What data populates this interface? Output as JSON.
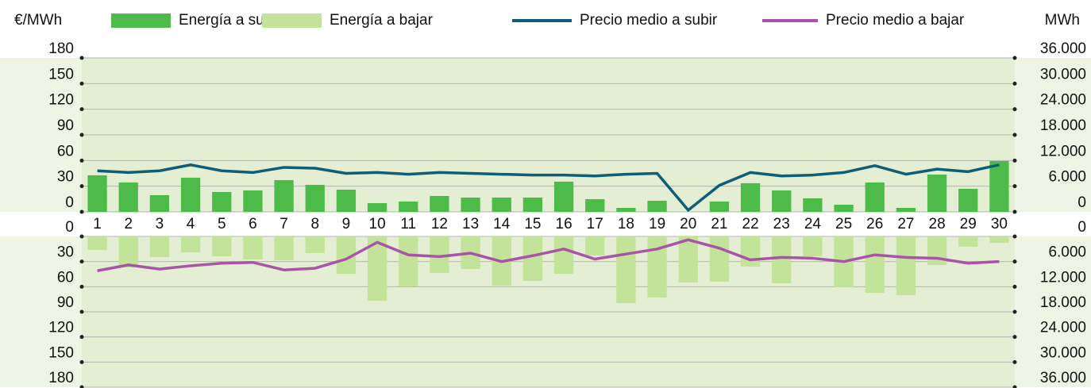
{
  "chart_data": [
    {
      "type": "bar",
      "y_label": "€/MWh",
      "y2_label": "MWh",
      "categories": [
        "1",
        "2",
        "3",
        "4",
        "5",
        "6",
        "7",
        "8",
        "9",
        "10",
        "11",
        "12",
        "13",
        "14",
        "15",
        "16",
        "17",
        "18",
        "19",
        "20",
        "21",
        "22",
        "23",
        "24",
        "25",
        "26",
        "27",
        "28",
        "29",
        "30"
      ],
      "ylim": [
        0,
        180
      ],
      "yticks": [
        0,
        30,
        60,
        90,
        120,
        150,
        180
      ],
      "y2lim": [
        0,
        36000
      ],
      "y2ticks": [
        0,
        {
          "value": 6000,
          "label": "6.000"
        },
        {
          "value": 12000,
          "label": "12.000"
        },
        {
          "value": 18000,
          "label": "18.000"
        },
        {
          "value": 24000,
          "label": "24.000"
        },
        {
          "value": 30000,
          "label": "30.000"
        },
        {
          "value": 36000,
          "label": "36.000"
        }
      ],
      "grid": true,
      "series": [
        {
          "name": "Energía a subir",
          "type": "bar",
          "axis": "y2",
          "color": "#4cbb4a",
          "values": [
            8540,
            6870,
            3900,
            7990,
            4640,
            5010,
            7430,
            6310,
            5200,
            2040,
            2410,
            3710,
            3340,
            3340,
            3340,
            7060,
            2970,
            930,
            2600,
            0,
            2410,
            6690,
            5010,
            3160,
            1670,
            6870,
            930,
            8730,
            5390,
            11890
          ]
        },
        {
          "name": "Precio medio a subir",
          "type": "line",
          "color": "#0e5e78",
          "values": [
            48,
            46,
            48,
            55,
            48,
            46,
            52,
            51,
            45,
            46,
            44,
            46,
            45,
            44,
            43,
            43,
            42,
            44,
            45,
            2,
            31,
            46,
            42,
            43,
            46,
            54,
            44,
            50,
            47,
            55
          ]
        }
      ]
    },
    {
      "type": "bar",
      "ylim": [
        180,
        0
      ],
      "yticks": [
        0,
        30,
        60,
        90,
        120,
        150,
        180
      ],
      "y2lim": [
        36000,
        0
      ],
      "y2ticks": [
        0,
        {
          "value": 6000,
          "label": "6.000"
        },
        {
          "value": 12000,
          "label": "12.000"
        },
        {
          "value": 18000,
          "label": "18.000"
        },
        {
          "value": 24000,
          "label": "24.000"
        },
        {
          "value": 30000,
          "label": "30.000"
        },
        {
          "value": 36000,
          "label": "36.000"
        }
      ],
      "grid": true,
      "series": [
        {
          "name": "Energía a bajar",
          "type": "bar",
          "axis": "y2",
          "color": "#c3e29a",
          "values": [
            3220,
            7390,
            4930,
            3790,
            4740,
            5500,
            5690,
            3980,
            8910,
            15350,
            11940,
            8720,
            7770,
            11750,
            10610,
            8910,
            4550,
            15920,
            14590,
            10990,
            10800,
            7200,
            11180,
            4740,
            12130,
            13450,
            14020,
            6820,
            2460,
            1520
          ]
        },
        {
          "name": "Precio medio a bajar",
          "type": "line",
          "color": "#a855a8",
          "values": [
            41,
            34,
            39,
            35,
            32,
            31,
            40,
            38,
            27,
            7,
            22,
            24,
            20,
            30,
            23,
            15,
            27,
            21,
            15,
            4,
            14,
            28,
            25,
            26,
            30,
            22,
            25,
            26,
            32,
            30
          ]
        }
      ]
    }
  ]
}
